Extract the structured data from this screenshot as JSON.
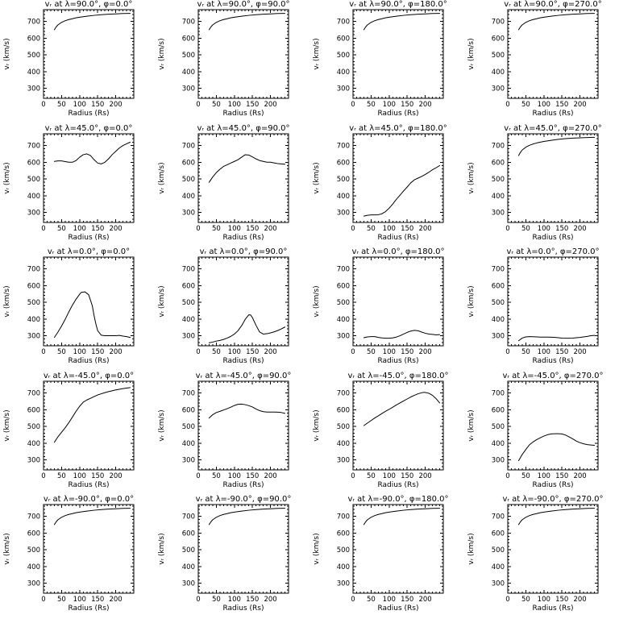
{
  "page": {
    "background": "#ffffff",
    "foreground": "#000000"
  },
  "chart_data": {
    "type": "line",
    "layout": {
      "rows": 5,
      "cols": 4,
      "grid": false,
      "legend": "none"
    },
    "axes": {
      "xlabel": "Radius (Rs)",
      "ylabel": "vᵣ (km/s)",
      "xticks": [
        0,
        50,
        100,
        150,
        200
      ],
      "yticks": [
        300,
        400,
        500,
        600,
        700
      ],
      "xlim": [
        0,
        250
      ],
      "ylim": [
        240,
        770
      ],
      "x_minor_step": 10,
      "y_minor_step": 20
    },
    "line_color": "#000000",
    "charts": [
      {
        "title": "vᵣ at λ=90.0°, φ=0.0°",
        "lambda": "90.0",
        "phi": "0.0",
        "x": [
          30,
          35,
          40,
          50,
          60,
          70,
          80,
          90,
          100,
          120,
          140,
          160,
          180,
          200,
          220,
          240
        ],
        "y": [
          650,
          667,
          679,
          694,
          704,
          711,
          716,
          721,
          725,
          731,
          736,
          740,
          743,
          745,
          747,
          748
        ]
      },
      {
        "title": "vᵣ at λ=90.0°, φ=90.0°",
        "lambda": "90.0",
        "phi": "90.0",
        "x": [
          30,
          35,
          40,
          50,
          60,
          70,
          80,
          90,
          100,
          120,
          140,
          160,
          180,
          200,
          220,
          240
        ],
        "y": [
          650,
          667,
          679,
          694,
          704,
          711,
          716,
          721,
          725,
          731,
          736,
          740,
          743,
          745,
          747,
          748
        ]
      },
      {
        "title": "vᵣ at λ=90.0°, φ=180.0°",
        "lambda": "90.0",
        "phi": "180.0",
        "x": [
          30,
          35,
          40,
          50,
          60,
          70,
          80,
          90,
          100,
          120,
          140,
          160,
          180,
          200,
          220,
          240
        ],
        "y": [
          650,
          667,
          679,
          694,
          704,
          711,
          716,
          721,
          725,
          731,
          736,
          740,
          743,
          745,
          747,
          748
        ]
      },
      {
        "title": "vᵣ at λ=90.0°, φ=270.0°",
        "lambda": "90.0",
        "phi": "270.0",
        "x": [
          30,
          35,
          40,
          50,
          60,
          70,
          80,
          90,
          100,
          120,
          140,
          160,
          180,
          200,
          220,
          240
        ],
        "y": [
          650,
          667,
          679,
          694,
          704,
          711,
          716,
          721,
          725,
          731,
          736,
          740,
          743,
          745,
          747,
          748
        ]
      },
      {
        "title": "vᵣ at λ=45.0°, φ=0.0°",
        "lambda": "45.0",
        "phi": "0.0",
        "x": [
          30,
          40,
          50,
          60,
          70,
          80,
          90,
          100,
          110,
          120,
          130,
          140,
          150,
          160,
          170,
          180,
          190,
          200,
          210,
          220,
          230,
          240
        ],
        "y": [
          605,
          608,
          608,
          604,
          600,
          600,
          610,
          630,
          645,
          650,
          640,
          615,
          595,
          590,
          600,
          620,
          645,
          665,
          685,
          700,
          710,
          720
        ]
      },
      {
        "title": "vᵣ at λ=45.0°, φ=90.0°",
        "lambda": "45.0",
        "phi": "90.0",
        "x": [
          30,
          40,
          50,
          60,
          70,
          80,
          90,
          100,
          110,
          120,
          130,
          140,
          150,
          160,
          170,
          180,
          190,
          200,
          210,
          220,
          230,
          240
        ],
        "y": [
          480,
          512,
          538,
          558,
          575,
          585,
          595,
          605,
          615,
          630,
          645,
          643,
          632,
          620,
          610,
          605,
          600,
          600,
          596,
          592,
          590,
          588
        ]
      },
      {
        "title": "vᵣ at λ=45.0°, φ=180.0°",
        "lambda": "45.0",
        "phi": "180.0",
        "x": [
          30,
          40,
          50,
          60,
          70,
          80,
          90,
          100,
          110,
          120,
          130,
          140,
          150,
          160,
          170,
          180,
          190,
          200,
          210,
          220,
          230,
          240
        ],
        "y": [
          278,
          283,
          285,
          285,
          286,
          292,
          305,
          325,
          350,
          378,
          403,
          428,
          452,
          477,
          495,
          505,
          515,
          527,
          540,
          555,
          567,
          580
        ]
      },
      {
        "title": "vᵣ at λ=45.0°, φ=270.0°",
        "lambda": "45.0",
        "phi": "270.0",
        "x": [
          30,
          35,
          40,
          50,
          60,
          70,
          80,
          90,
          100,
          120,
          140,
          160,
          180,
          200,
          220,
          240
        ],
        "y": [
          640,
          659,
          673,
          690,
          701,
          709,
          715,
          720,
          724,
          731,
          737,
          741,
          744,
          746,
          748,
          749
        ]
      },
      {
        "title": "vᵣ at λ=0.0°, φ=0.0°",
        "lambda": "0.0",
        "phi": "0.0",
        "x": [
          30,
          40,
          50,
          60,
          70,
          80,
          90,
          100,
          105,
          115,
          125,
          135,
          140,
          145,
          150,
          160,
          170,
          180,
          190,
          200,
          210,
          220,
          230,
          240
        ],
        "y": [
          290,
          322,
          358,
          398,
          442,
          483,
          518,
          548,
          560,
          562,
          545,
          480,
          420,
          370,
          330,
          303,
          300,
          300,
          300,
          300,
          302,
          298,
          295,
          290
        ]
      },
      {
        "title": "vᵣ at λ=0.0°, φ=90.0°",
        "lambda": "0.0",
        "phi": "90.0",
        "x": [
          30,
          40,
          50,
          60,
          70,
          80,
          90,
          100,
          110,
          120,
          130,
          140,
          145,
          150,
          160,
          170,
          180,
          190,
          200,
          210,
          220,
          230,
          240
        ],
        "y": [
          258,
          262,
          268,
          272,
          278,
          286,
          296,
          310,
          330,
          360,
          398,
          425,
          424,
          408,
          362,
          322,
          310,
          312,
          317,
          323,
          331,
          341,
          352
        ]
      },
      {
        "title": "vᵣ at λ=0.0°, φ=180.0°",
        "lambda": "0.0",
        "phi": "180.0",
        "x": [
          30,
          40,
          50,
          60,
          70,
          80,
          90,
          100,
          110,
          120,
          130,
          140,
          150,
          160,
          170,
          180,
          190,
          200,
          210,
          220,
          230,
          240
        ],
        "y": [
          288,
          293,
          295,
          295,
          290,
          287,
          285,
          285,
          287,
          292,
          300,
          310,
          320,
          328,
          332,
          330,
          322,
          315,
          310,
          308,
          305,
          307
        ]
      },
      {
        "title": "vᵣ at λ=0.0°, φ=270.0°",
        "lambda": "0.0",
        "phi": "270.0",
        "x": [
          30,
          40,
          50,
          60,
          70,
          80,
          90,
          100,
          110,
          120,
          130,
          140,
          150,
          160,
          170,
          180,
          190,
          200,
          210,
          220,
          230,
          240
        ],
        "y": [
          270,
          286,
          293,
          295,
          294,
          293,
          292,
          292,
          292,
          291,
          290,
          288,
          286,
          285,
          285,
          286,
          288,
          290,
          293,
          296,
          300,
          302
        ]
      },
      {
        "title": "vᵣ at λ=-45.0°, φ=0.0°",
        "lambda": "-45.0",
        "phi": "0.0",
        "x": [
          30,
          40,
          50,
          60,
          70,
          80,
          90,
          100,
          110,
          120,
          130,
          140,
          150,
          160,
          170,
          180,
          190,
          200,
          210,
          220,
          230,
          240
        ],
        "y": [
          405,
          438,
          465,
          492,
          522,
          556,
          590,
          620,
          645,
          658,
          668,
          678,
          688,
          695,
          702,
          708,
          713,
          718,
          722,
          726,
          729,
          732
        ]
      },
      {
        "title": "vᵣ at λ=-45.0°, φ=90.0°",
        "lambda": "-45.0",
        "phi": "90.0",
        "x": [
          30,
          40,
          50,
          60,
          70,
          80,
          90,
          100,
          110,
          120,
          130,
          140,
          150,
          160,
          170,
          180,
          190,
          200,
          210,
          220,
          230,
          240
        ],
        "y": [
          550,
          570,
          583,
          590,
          598,
          606,
          615,
          625,
          632,
          633,
          630,
          624,
          616,
          604,
          594,
          588,
          586,
          586,
          586,
          585,
          583,
          578
        ]
      },
      {
        "title": "vᵣ at λ=-45.0°, φ=180.0°",
        "lambda": "-45.0",
        "phi": "180.0",
        "x": [
          30,
          40,
          50,
          60,
          70,
          80,
          90,
          100,
          110,
          120,
          130,
          140,
          150,
          160,
          170,
          180,
          190,
          195,
          200,
          210,
          220,
          230,
          240
        ],
        "y": [
          505,
          520,
          535,
          550,
          563,
          577,
          590,
          602,
          615,
          628,
          640,
          652,
          664,
          676,
          686,
          695,
          701,
          703,
          703,
          698,
          686,
          666,
          640
        ]
      },
      {
        "title": "vᵣ at λ=-45.0°, φ=270.0°",
        "lambda": "-45.0",
        "phi": "270.0",
        "x": [
          30,
          40,
          50,
          60,
          70,
          80,
          90,
          100,
          110,
          120,
          130,
          140,
          150,
          160,
          170,
          180,
          190,
          200,
          210,
          220,
          230,
          240
        ],
        "y": [
          295,
          332,
          362,
          390,
          407,
          421,
          432,
          442,
          450,
          455,
          456,
          456,
          455,
          448,
          437,
          425,
          412,
          403,
          396,
          391,
          389,
          387
        ]
      },
      {
        "title": "vᵣ at λ=-90.0°, φ=0.0°",
        "lambda": "-90.0",
        "phi": "0.0",
        "x": [
          30,
          35,
          40,
          50,
          60,
          70,
          80,
          90,
          100,
          120,
          140,
          160,
          180,
          200,
          220,
          240
        ],
        "y": [
          650,
          667,
          679,
          694,
          704,
          711,
          716,
          721,
          725,
          731,
          736,
          740,
          743,
          745,
          747,
          748
        ]
      },
      {
        "title": "vᵣ at λ=-90.0°, φ=90.0°",
        "lambda": "-90.0",
        "phi": "90.0",
        "x": [
          30,
          35,
          40,
          50,
          60,
          70,
          80,
          90,
          100,
          120,
          140,
          160,
          180,
          200,
          220,
          240
        ],
        "y": [
          650,
          667,
          679,
          694,
          704,
          711,
          716,
          721,
          725,
          731,
          736,
          740,
          743,
          745,
          747,
          748
        ]
      },
      {
        "title": "vᵣ at λ=-90.0°, φ=180.0°",
        "lambda": "-90.0",
        "phi": "180.0",
        "x": [
          30,
          35,
          40,
          50,
          60,
          70,
          80,
          90,
          100,
          120,
          140,
          160,
          180,
          200,
          220,
          240
        ],
        "y": [
          650,
          667,
          679,
          694,
          704,
          711,
          716,
          721,
          725,
          731,
          736,
          740,
          743,
          745,
          747,
          748
        ]
      },
      {
        "title": "vᵣ at λ=-90.0°, φ=270.0°",
        "lambda": "-90.0",
        "phi": "270.0",
        "x": [
          30,
          35,
          40,
          50,
          60,
          70,
          80,
          90,
          100,
          120,
          140,
          160,
          180,
          200,
          220,
          240
        ],
        "y": [
          650,
          667,
          679,
          694,
          704,
          711,
          716,
          721,
          725,
          731,
          736,
          740,
          743,
          745,
          747,
          748
        ]
      }
    ]
  }
}
